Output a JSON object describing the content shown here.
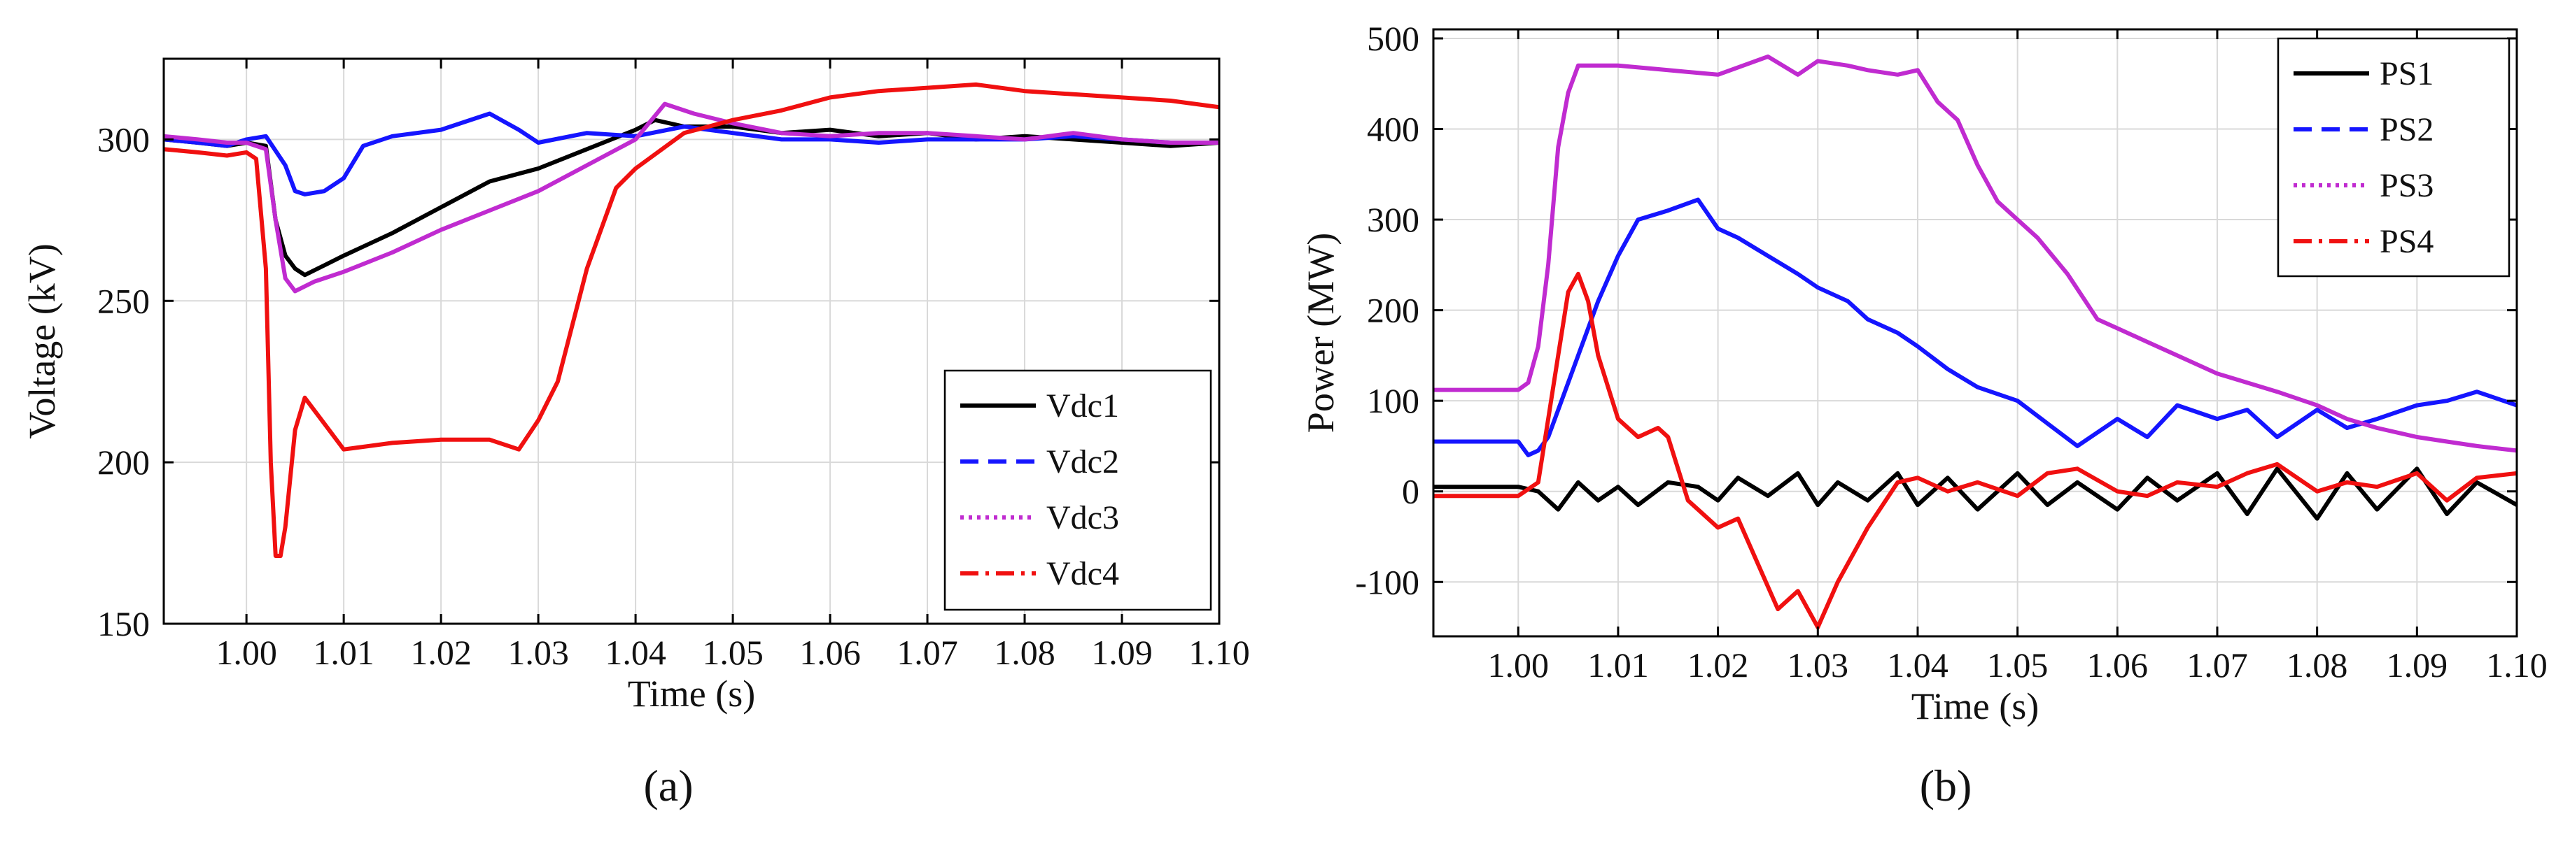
{
  "colors": {
    "black": "#000000",
    "blue": "#1515ff",
    "magenta": "#c02bd0",
    "red": "#f01010",
    "grid": "#d9d9d9"
  },
  "chart_data": [
    {
      "type": "line",
      "panel_label": "(a)",
      "title": "",
      "xlabel": "Time (s)",
      "ylabel": "Voltage (kV)",
      "xlim": [
        0.9915,
        1.1
      ],
      "ylim": [
        150,
        325
      ],
      "xticks": [
        1.0,
        1.01,
        1.02,
        1.03,
        1.04,
        1.05,
        1.06,
        1.07,
        1.08,
        1.09,
        1.1
      ],
      "xtick_labels": [
        "1.00",
        "1.01",
        "1.02",
        "1.03",
        "1.04",
        "1.05",
        "1.06",
        "1.07",
        "1.08",
        "1.09",
        "1.10"
      ],
      "yticks": [
        150,
        200,
        250,
        300
      ],
      "ytick_labels": [
        "150",
        "200",
        "250",
        "300"
      ],
      "grid": true,
      "legend": "bottom-right",
      "series": [
        {
          "name": "Vdc1",
          "color": "#000000",
          "dash": "solid",
          "x": [
            0.9915,
            0.995,
            0.998,
            1.0,
            1.002,
            1.003,
            1.004,
            1.005,
            1.006,
            1.008,
            1.01,
            1.015,
            1.02,
            1.025,
            1.03,
            1.035,
            1.04,
            1.042,
            1.045,
            1.05,
            1.055,
            1.06,
            1.065,
            1.07,
            1.075,
            1.08,
            1.085,
            1.09,
            1.095,
            1.1
          ],
          "y": [
            300,
            299,
            298,
            299,
            298,
            275,
            264,
            260,
            258,
            261,
            264,
            271,
            279,
            287,
            291,
            297,
            303,
            306,
            304,
            304,
            302,
            303,
            301,
            302,
            300,
            301,
            300,
            299,
            298,
            299
          ]
        },
        {
          "name": "Vdc2",
          "color": "#1515ff",
          "dash": "dash",
          "x": [
            0.9915,
            0.995,
            0.998,
            1.0,
            1.002,
            1.004,
            1.005,
            1.006,
            1.008,
            1.01,
            1.012,
            1.015,
            1.02,
            1.025,
            1.028,
            1.03,
            1.035,
            1.04,
            1.045,
            1.05,
            1.055,
            1.06,
            1.065,
            1.07,
            1.075,
            1.08,
            1.085,
            1.09,
            1.095,
            1.1
          ],
          "y": [
            300,
            299,
            298,
            300,
            301,
            292,
            284,
            283,
            284,
            288,
            298,
            301,
            303,
            308,
            303,
            299,
            302,
            301,
            304,
            302,
            300,
            300,
            299,
            300,
            300,
            300,
            301,
            300,
            299,
            299
          ]
        },
        {
          "name": "Vdc3",
          "color": "#c02bd0",
          "dash": "dot",
          "x": [
            0.9915,
            0.995,
            0.998,
            1.0,
            1.002,
            1.003,
            1.004,
            1.005,
            1.007,
            1.01,
            1.015,
            1.02,
            1.025,
            1.03,
            1.035,
            1.04,
            1.043,
            1.046,
            1.05,
            1.055,
            1.06,
            1.065,
            1.07,
            1.075,
            1.08,
            1.085,
            1.09,
            1.095,
            1.1
          ],
          "y": [
            301,
            300,
            299,
            299,
            297,
            275,
            257,
            253,
            256,
            259,
            265,
            272,
            278,
            284,
            292,
            300,
            311,
            308,
            305,
            302,
            301,
            302,
            302,
            301,
            300,
            302,
            300,
            299,
            299
          ]
        },
        {
          "name": "Vdc4",
          "color": "#f01010",
          "dash": "dashdot",
          "x": [
            0.9915,
            0.995,
            0.998,
            1.0,
            1.001,
            1.002,
            1.0025,
            1.003,
            1.0035,
            1.004,
            1.005,
            1.006,
            1.008,
            1.01,
            1.015,
            1.02,
            1.025,
            1.028,
            1.03,
            1.032,
            1.035,
            1.038,
            1.04,
            1.045,
            1.05,
            1.055,
            1.06,
            1.065,
            1.07,
            1.075,
            1.08,
            1.085,
            1.09,
            1.095,
            1.1
          ],
          "y": [
            297,
            296,
            295,
            296,
            294,
            260,
            200,
            171,
            171,
            180,
            210,
            220,
            212,
            204,
            206,
            207,
            207,
            204,
            213,
            225,
            260,
            285,
            291,
            302,
            306,
            309,
            313,
            315,
            316,
            317,
            315,
            314,
            313,
            312,
            310
          ]
        }
      ]
    },
    {
      "type": "line",
      "panel_label": "(b)",
      "title": "",
      "xlabel": "Time (s)",
      "ylabel": "Power (MW)",
      "xlim": [
        0.9915,
        1.1
      ],
      "ylim": [
        -160,
        510
      ],
      "xticks": [
        1.0,
        1.01,
        1.02,
        1.03,
        1.04,
        1.05,
        1.06,
        1.07,
        1.08,
        1.09,
        1.1
      ],
      "xtick_labels": [
        "1.00",
        "1.01",
        "1.02",
        "1.03",
        "1.04",
        "1.05",
        "1.06",
        "1.07",
        "1.08",
        "1.09",
        "1.10"
      ],
      "yticks": [
        -100,
        0,
        100,
        200,
        300,
        400,
        500
      ],
      "ytick_labels": [
        "-100",
        "0",
        "100",
        "200",
        "300",
        "400",
        "500"
      ],
      "grid": true,
      "legend": "top-right",
      "series": [
        {
          "name": "PS1",
          "color": "#000000",
          "dash": "solid",
          "x": [
            0.9915,
            0.995,
            1.0,
            1.002,
            1.004,
            1.006,
            1.008,
            1.01,
            1.012,
            1.015,
            1.018,
            1.02,
            1.022,
            1.025,
            1.028,
            1.03,
            1.032,
            1.035,
            1.038,
            1.04,
            1.043,
            1.046,
            1.05,
            1.053,
            1.056,
            1.06,
            1.063,
            1.066,
            1.07,
            1.073,
            1.076,
            1.08,
            1.083,
            1.086,
            1.09,
            1.093,
            1.096,
            1.1
          ],
          "y": [
            5,
            5,
            5,
            0,
            -20,
            10,
            -10,
            5,
            -15,
            10,
            5,
            -10,
            15,
            -5,
            20,
            -15,
            10,
            -10,
            20,
            -15,
            15,
            -20,
            20,
            -15,
            10,
            -20,
            15,
            -10,
            20,
            -25,
            25,
            -30,
            20,
            -20,
            25,
            -25,
            10,
            -15
          ]
        },
        {
          "name": "PS2",
          "color": "#1515ff",
          "dash": "dash",
          "x": [
            0.9915,
            0.995,
            1.0,
            1.001,
            1.002,
            1.003,
            1.005,
            1.008,
            1.01,
            1.012,
            1.015,
            1.018,
            1.02,
            1.022,
            1.025,
            1.028,
            1.03,
            1.033,
            1.035,
            1.038,
            1.04,
            1.043,
            1.046,
            1.05,
            1.053,
            1.056,
            1.06,
            1.063,
            1.066,
            1.07,
            1.073,
            1.076,
            1.08,
            1.083,
            1.086,
            1.09,
            1.093,
            1.096,
            1.1
          ],
          "y": [
            55,
            55,
            55,
            40,
            45,
            60,
            120,
            210,
            260,
            300,
            310,
            322,
            290,
            280,
            260,
            240,
            225,
            210,
            190,
            175,
            160,
            135,
            115,
            100,
            75,
            50,
            80,
            60,
            95,
            80,
            90,
            60,
            90,
            70,
            80,
            95,
            100,
            110,
            95
          ]
        },
        {
          "name": "PS3",
          "color": "#c02bd0",
          "dash": "dot",
          "x": [
            0.9915,
            0.995,
            1.0,
            1.001,
            1.002,
            1.003,
            1.004,
            1.005,
            1.006,
            1.01,
            1.015,
            1.02,
            1.025,
            1.028,
            1.03,
            1.033,
            1.035,
            1.038,
            1.04,
            1.042,
            1.044,
            1.046,
            1.048,
            1.05,
            1.052,
            1.055,
            1.058,
            1.06,
            1.063,
            1.066,
            1.07,
            1.073,
            1.076,
            1.08,
            1.083,
            1.086,
            1.09,
            1.093,
            1.096,
            1.1
          ],
          "y": [
            112,
            112,
            112,
            120,
            160,
            250,
            380,
            440,
            470,
            470,
            465,
            460,
            480,
            460,
            475,
            470,
            465,
            460,
            465,
            430,
            410,
            360,
            320,
            300,
            280,
            240,
            190,
            180,
            165,
            150,
            130,
            120,
            110,
            95,
            80,
            70,
            60,
            55,
            50,
            45
          ]
        },
        {
          "name": "PS4",
          "color": "#f01010",
          "dash": "dashdot",
          "x": [
            0.9915,
            0.995,
            1.0,
            1.002,
            1.003,
            1.004,
            1.005,
            1.006,
            1.007,
            1.008,
            1.01,
            1.012,
            1.014,
            1.015,
            1.017,
            1.018,
            1.02,
            1.022,
            1.024,
            1.026,
            1.028,
            1.03,
            1.032,
            1.035,
            1.038,
            1.04,
            1.043,
            1.046,
            1.05,
            1.053,
            1.056,
            1.06,
            1.063,
            1.066,
            1.07,
            1.073,
            1.076,
            1.08,
            1.083,
            1.086,
            1.09,
            1.093,
            1.096,
            1.1
          ],
          "y": [
            -5,
            -5,
            -5,
            10,
            80,
            150,
            220,
            240,
            210,
            150,
            80,
            60,
            70,
            60,
            -10,
            -20,
            -40,
            -30,
            -80,
            -130,
            -110,
            -150,
            -100,
            -40,
            10,
            15,
            0,
            10,
            -5,
            20,
            25,
            0,
            -5,
            10,
            5,
            20,
            30,
            0,
            10,
            5,
            20,
            -10,
            15,
            20
          ]
        }
      ]
    }
  ]
}
